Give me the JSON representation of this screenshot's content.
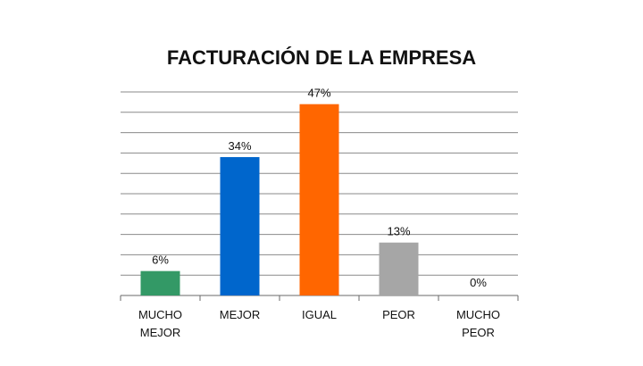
{
  "chart_data": {
    "type": "bar",
    "title": "FACTURACIÓN DE LA EMPRESA",
    "categories": [
      "MUCHO MEJOR",
      "MEJOR",
      "IGUAL",
      "PEOR",
      "MUCHO PEOR"
    ],
    "category_lines": [
      [
        "MUCHO",
        "MEJOR"
      ],
      [
        "MEJOR"
      ],
      [
        "IGUAL"
      ],
      [
        "PEOR"
      ],
      [
        "MUCHO",
        "PEOR"
      ]
    ],
    "values": [
      6,
      34,
      47,
      13,
      0
    ],
    "value_labels": [
      "6%",
      "34%",
      "47%",
      "13%",
      "0%"
    ],
    "colors": [
      "#339966",
      "#0066CC",
      "#FF6600",
      "#A6A6A6",
      "#7F7F7F"
    ],
    "ylim": [
      0,
      50
    ],
    "grid": true,
    "legend": "none"
  }
}
